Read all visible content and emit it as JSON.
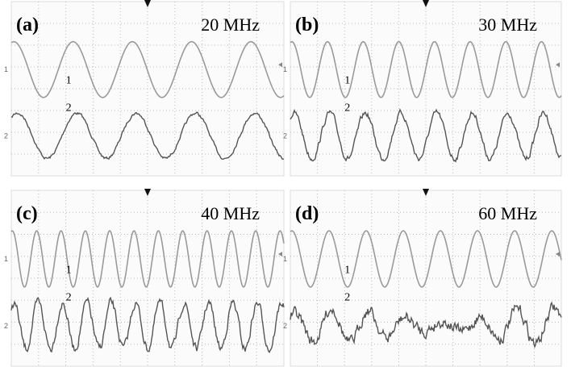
{
  "panels": [
    {
      "label": "(a)",
      "frequency": "20 MHz",
      "traces": [
        "1",
        "2"
      ]
    },
    {
      "label": "(b)",
      "frequency": "30 MHz",
      "traces": [
        "1",
        "2"
      ]
    },
    {
      "label": "(c)",
      "frequency": "40 MHz",
      "traces": [
        "1",
        "2"
      ]
    },
    {
      "label": "(d)",
      "frequency": "60 MHz",
      "traces": [
        "1",
        "2"
      ]
    }
  ]
}
